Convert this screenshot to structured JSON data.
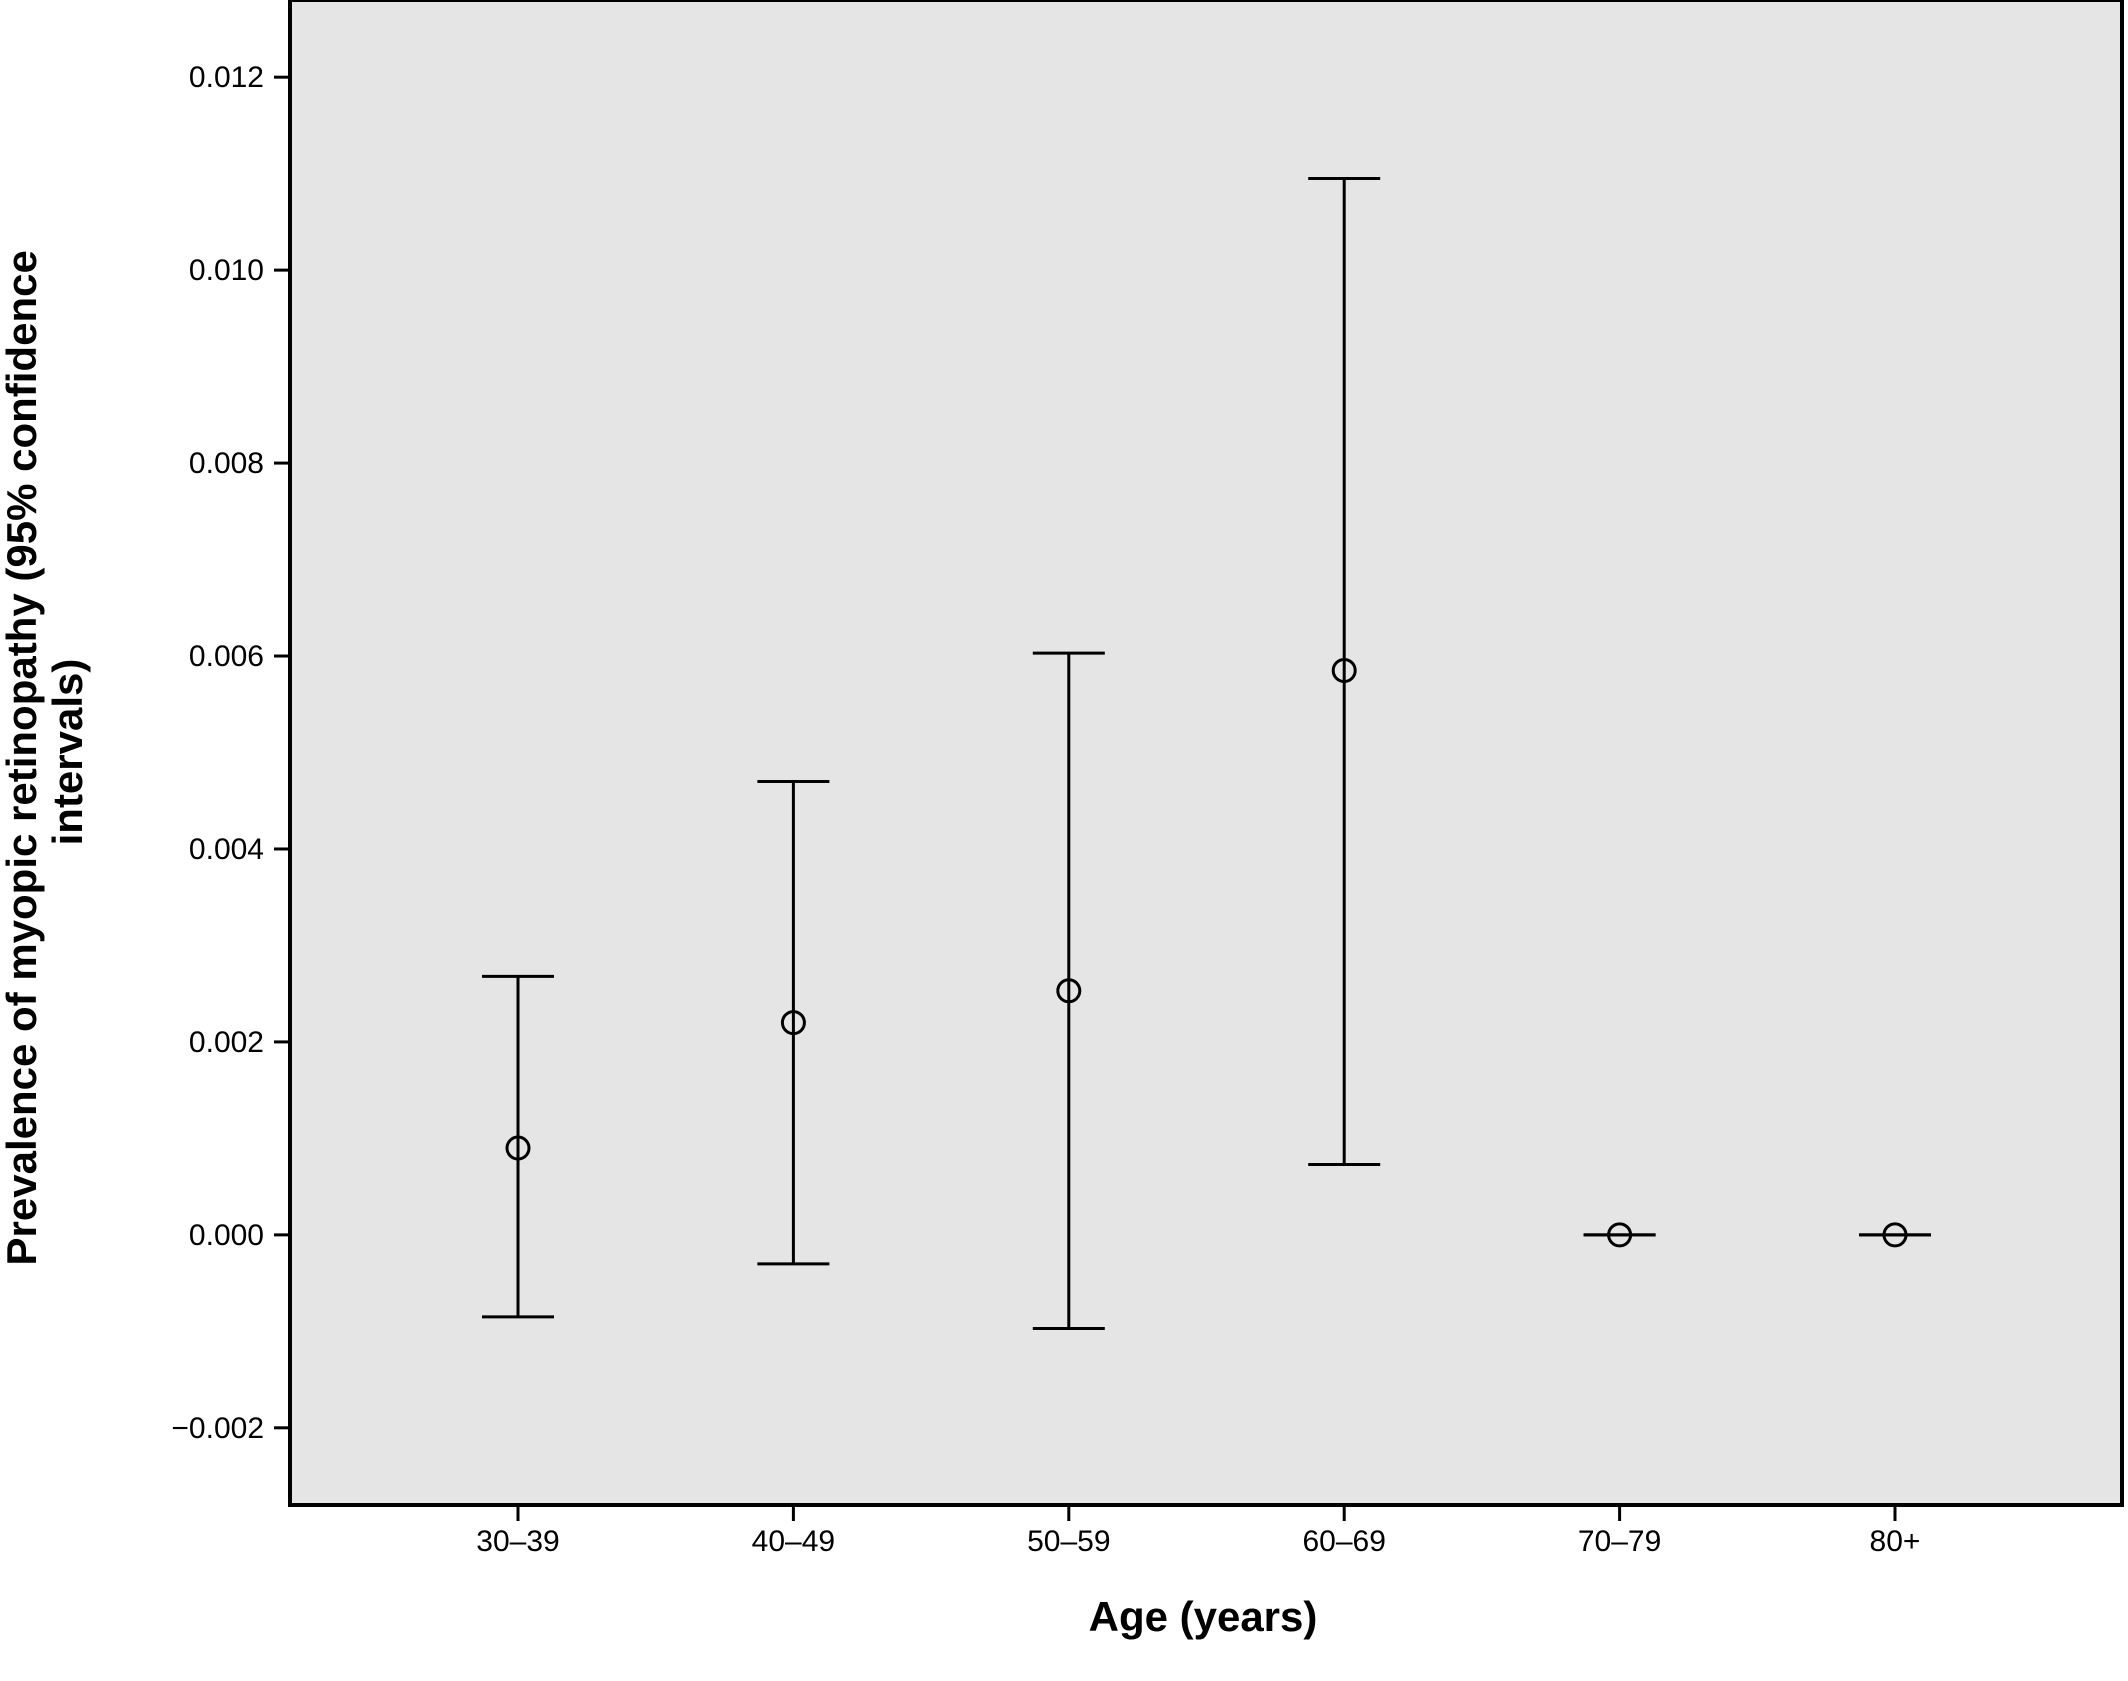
{
  "chart_data": {
    "type": "errorbar",
    "xlabel": "Age (years)",
    "ylabel_lines": [
      "Prevalence of myopic retinopathy (95% confidence",
      "intervals)"
    ],
    "ylim": [
      -0.0028,
      0.0128
    ],
    "y_ticks": [
      -0.002,
      0.0,
      0.002,
      0.004,
      0.006,
      0.008,
      0.01,
      0.012
    ],
    "y_tick_labels": [
      "−0.002",
      "0.000",
      "0.002",
      "0.004",
      "0.006",
      "0.008",
      "0.010",
      "0.012"
    ],
    "categories": [
      "30–39",
      "40–49",
      "50–59",
      "60–69",
      "70–79",
      "80+"
    ],
    "points": [
      {
        "category": "30–39",
        "y": 0.0009,
        "lower": -0.00085,
        "upper": 0.00268
      },
      {
        "category": "40–49",
        "y": 0.0022,
        "lower": -0.0003,
        "upper": 0.0047
      },
      {
        "category": "50–59",
        "y": 0.00253,
        "lower": -0.00097,
        "upper": 0.00603
      },
      {
        "category": "60–69",
        "y": 0.00585,
        "lower": 0.00073,
        "upper": 0.01095
      },
      {
        "category": "70–79",
        "y": 0.0,
        "lower": 0.0,
        "upper": 0.0
      },
      {
        "category": "80+",
        "y": 0.0,
        "lower": 0.0,
        "upper": 0.0
      }
    ],
    "grid": false,
    "legend": "none",
    "plot_background": "#e5e5e5",
    "line_color": "#000000"
  }
}
